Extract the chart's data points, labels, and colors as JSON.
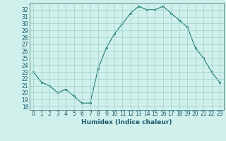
{
  "x": [
    0,
    1,
    2,
    3,
    4,
    5,
    6,
    7,
    8,
    9,
    10,
    11,
    12,
    13,
    14,
    15,
    16,
    17,
    18,
    19,
    20,
    21,
    22,
    23
  ],
  "y": [
    23,
    21.5,
    21,
    20,
    20.5,
    19.5,
    18.5,
    18.5,
    23.5,
    26.5,
    28.5,
    30,
    31.5,
    32.5,
    32,
    32,
    32.5,
    31.5,
    30.5,
    29.5,
    26.5,
    25,
    23,
    21.5
  ],
  "line_color": "#1a7a6e",
  "marker_color": "#1a7a6e",
  "bg_color": "#cff0eb",
  "grid_color": "#9dcfca",
  "xlabel": "Humidex (Indice chaleur)",
  "xlim": [
    -0.5,
    23.5
  ],
  "ylim": [
    17.5,
    33.0
  ],
  "xticks": [
    0,
    1,
    2,
    3,
    4,
    5,
    6,
    7,
    8,
    9,
    10,
    11,
    12,
    13,
    14,
    15,
    16,
    17,
    18,
    19,
    20,
    21,
    22,
    23
  ],
  "yticks": [
    18,
    19,
    20,
    21,
    22,
    23,
    24,
    25,
    26,
    27,
    28,
    29,
    30,
    31,
    32
  ],
  "tick_fontsize": 5.5,
  "label_fontsize": 6.5
}
